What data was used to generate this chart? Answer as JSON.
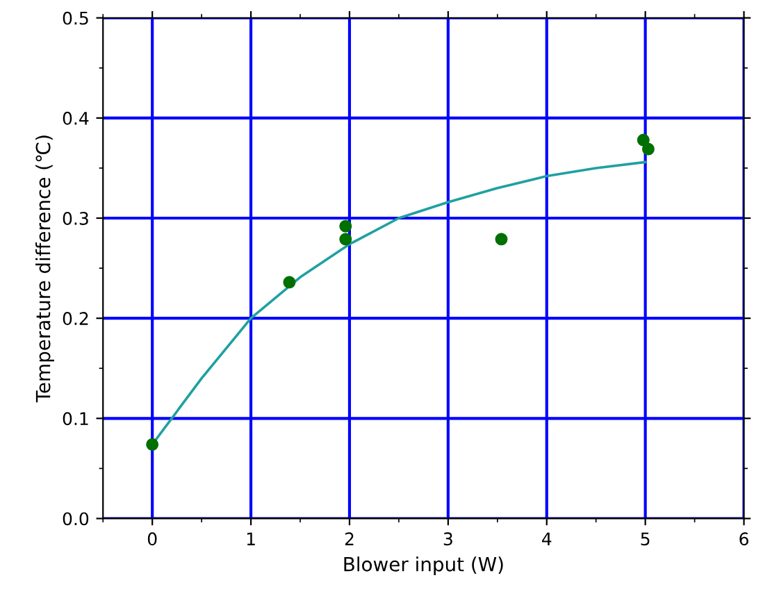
{
  "chart_data": {
    "type": "scatter",
    "xlabel": "Blower input (W)",
    "ylabel": "Temperature difference (℃)",
    "xlim": [
      -0.5,
      6
    ],
    "ylim": [
      0,
      0.5
    ],
    "xticks": [
      0,
      1,
      2,
      3,
      4,
      5,
      6,
      {
        "value": -0.5,
        "label": null
      },
      {
        "value": 0.5,
        "label": null
      },
      {
        "value": 1.5,
        "label": null
      },
      {
        "value": 2.5,
        "label": null
      },
      {
        "value": 3.5,
        "label": null
      },
      {
        "value": 4.5,
        "label": null
      },
      {
        "value": 5.5,
        "label": null
      }
    ],
    "yticks": [
      {
        "value": 0,
        "label": "0.0"
      },
      0.1,
      0.2,
      0.3,
      0.4,
      0.5,
      {
        "value": 0.05,
        "label": null
      },
      {
        "value": 0.15,
        "label": null
      },
      {
        "value": 0.25,
        "label": null
      },
      {
        "value": 0.35,
        "label": null
      },
      {
        "value": 0.45,
        "label": null
      }
    ],
    "grid": true,
    "series": [
      {
        "marker": "circle",
        "color": "#007000",
        "x": [
          0,
          1.39,
          1.96,
          1.96,
          3.54,
          4.98,
          5.03
        ],
        "values": [
          0.074,
          0.236,
          0.292,
          0.279,
          0.279,
          0.378,
          0.369
        ]
      },
      {
        "type": "line",
        "marker": "none",
        "color": "#20a0a0",
        "line_style": "solid",
        "x": [
          0,
          0.5,
          1,
          1.5,
          2,
          2.5,
          3,
          3.5,
          4,
          4.5,
          5
        ],
        "values": [
          0.074,
          0.14,
          0.2,
          0.241,
          0.274,
          0.3,
          0.316,
          0.33,
          0.342,
          0.35,
          0.356
        ]
      }
    ]
  }
}
